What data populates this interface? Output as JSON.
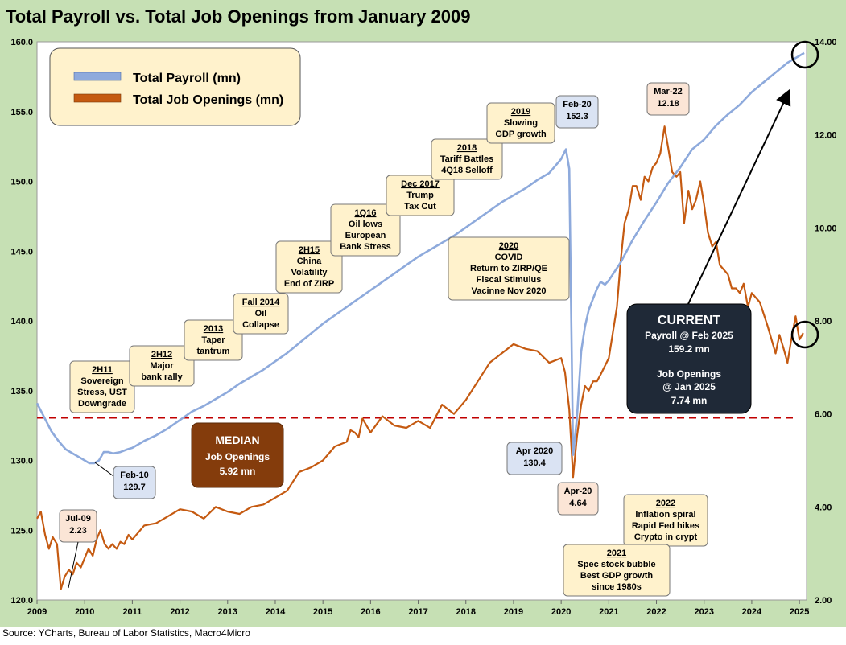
{
  "title": "Total Payroll vs. Total Job Openings from January 2009",
  "source": "Source: YCharts, Bureau of Labor Statistics, Macro4Micro",
  "colors": {
    "background": "#c6e0b4",
    "payroll": "#8eaadc",
    "openings": "#c55a11",
    "median": "#c00000",
    "callout_fill": "#fff2cc",
    "callout_blue": "#dae3f3",
    "callout_pink": "#fbe5d6",
    "dark_box": "#1f2937",
    "median_box": "#843c0c"
  },
  "chart_data": {
    "type": "line",
    "title": "Total Payroll vs. Total Job Openings from January 2009",
    "x_ticks": [
      "2009",
      "2010",
      "2011",
      "2012",
      "2013",
      "2014",
      "2015",
      "2016",
      "2017",
      "2018",
      "2019",
      "2020",
      "2021",
      "2022",
      "2023",
      "2024",
      "2025"
    ],
    "y_left_ticks": [
      "120.0",
      "125.0",
      "130.0",
      "135.0",
      "140.0",
      "145.0",
      "150.0",
      "155.0",
      "160.0"
    ],
    "y_right_ticks": [
      "2.00",
      "4.00",
      "6.00",
      "8.00",
      "10.00",
      "12.00",
      "14.00"
    ],
    "y_left_range": [
      120,
      160
    ],
    "y_right_range": [
      2,
      14
    ],
    "x_range": [
      2009,
      2025.15
    ],
    "legend": {
      "position": "top-left",
      "items": [
        "Total Payroll (mn)",
        "Total Job Openings (mn)"
      ]
    },
    "series": [
      {
        "name": "Total Payroll (mn)",
        "axis": "left",
        "points": [
          [
            2009.0,
            134.1
          ],
          [
            2009.15,
            133.1
          ],
          [
            2009.3,
            132.1
          ],
          [
            2009.45,
            131.4
          ],
          [
            2009.6,
            130.8
          ],
          [
            2009.75,
            130.5
          ],
          [
            2009.9,
            130.2
          ],
          [
            2010.0,
            130.0
          ],
          [
            2010.1,
            129.8
          ],
          [
            2010.2,
            129.8
          ],
          [
            2010.3,
            130.0
          ],
          [
            2010.4,
            130.6
          ],
          [
            2010.5,
            130.6
          ],
          [
            2010.6,
            130.5
          ],
          [
            2010.75,
            130.6
          ],
          [
            2010.9,
            130.8
          ],
          [
            2011.0,
            130.9
          ],
          [
            2011.25,
            131.4
          ],
          [
            2011.5,
            131.8
          ],
          [
            2011.75,
            132.3
          ],
          [
            2012.0,
            132.9
          ],
          [
            2012.25,
            133.5
          ],
          [
            2012.5,
            133.9
          ],
          [
            2012.75,
            134.4
          ],
          [
            2013.0,
            134.9
          ],
          [
            2013.25,
            135.5
          ],
          [
            2013.5,
            136.0
          ],
          [
            2013.75,
            136.5
          ],
          [
            2014.0,
            137.1
          ],
          [
            2014.25,
            137.7
          ],
          [
            2014.5,
            138.4
          ],
          [
            2014.75,
            139.1
          ],
          [
            2015.0,
            139.8
          ],
          [
            2015.25,
            140.4
          ],
          [
            2015.5,
            141.0
          ],
          [
            2015.75,
            141.6
          ],
          [
            2016.0,
            142.2
          ],
          [
            2016.25,
            142.8
          ],
          [
            2016.5,
            143.4
          ],
          [
            2016.75,
            144.0
          ],
          [
            2017.0,
            144.6
          ],
          [
            2017.25,
            145.1
          ],
          [
            2017.5,
            145.6
          ],
          [
            2017.75,
            146.1
          ],
          [
            2018.0,
            146.7
          ],
          [
            2018.25,
            147.3
          ],
          [
            2018.5,
            147.9
          ],
          [
            2018.75,
            148.5
          ],
          [
            2019.0,
            149.0
          ],
          [
            2019.25,
            149.5
          ],
          [
            2019.5,
            150.1
          ],
          [
            2019.75,
            150.6
          ],
          [
            2020.0,
            151.6
          ],
          [
            2020.1,
            152.3
          ],
          [
            2020.17,
            150.9
          ],
          [
            2020.25,
            130.4
          ],
          [
            2020.33,
            133.0
          ],
          [
            2020.42,
            137.8
          ],
          [
            2020.5,
            139.6
          ],
          [
            2020.58,
            140.8
          ],
          [
            2020.67,
            141.6
          ],
          [
            2020.75,
            142.3
          ],
          [
            2020.83,
            142.8
          ],
          [
            2020.92,
            142.6
          ],
          [
            2021.0,
            142.9
          ],
          [
            2021.25,
            144.2
          ],
          [
            2021.5,
            145.8
          ],
          [
            2021.75,
            147.2
          ],
          [
            2022.0,
            148.5
          ],
          [
            2022.25,
            149.9
          ],
          [
            2022.5,
            151.0
          ],
          [
            2022.75,
            152.3
          ],
          [
            2023.0,
            153.0
          ],
          [
            2023.25,
            154.0
          ],
          [
            2023.5,
            154.8
          ],
          [
            2023.75,
            155.5
          ],
          [
            2024.0,
            156.4
          ],
          [
            2024.25,
            157.1
          ],
          [
            2024.5,
            157.8
          ],
          [
            2024.75,
            158.5
          ],
          [
            2025.0,
            159.0
          ],
          [
            2025.1,
            159.2
          ]
        ]
      },
      {
        "name": "Total Job Openings (mn)",
        "axis": "right",
        "points": [
          [
            2009.0,
            3.75
          ],
          [
            2009.08,
            3.9
          ],
          [
            2009.17,
            3.4
          ],
          [
            2009.25,
            3.1
          ],
          [
            2009.33,
            3.35
          ],
          [
            2009.42,
            3.2
          ],
          [
            2009.5,
            2.23
          ],
          [
            2009.58,
            2.5
          ],
          [
            2009.67,
            2.65
          ],
          [
            2009.75,
            2.55
          ],
          [
            2009.83,
            2.8
          ],
          [
            2009.92,
            2.7
          ],
          [
            2010.0,
            2.9
          ],
          [
            2010.08,
            3.1
          ],
          [
            2010.17,
            2.95
          ],
          [
            2010.25,
            3.3
          ],
          [
            2010.33,
            3.5
          ],
          [
            2010.42,
            3.2
          ],
          [
            2010.5,
            3.1
          ],
          [
            2010.58,
            3.2
          ],
          [
            2010.67,
            3.1
          ],
          [
            2010.75,
            3.25
          ],
          [
            2010.83,
            3.2
          ],
          [
            2010.92,
            3.4
          ],
          [
            2011.0,
            3.3
          ],
          [
            2011.25,
            3.6
          ],
          [
            2011.5,
            3.65
          ],
          [
            2011.75,
            3.8
          ],
          [
            2012.0,
            3.95
          ],
          [
            2012.25,
            3.9
          ],
          [
            2012.5,
            3.75
          ],
          [
            2012.75,
            4.0
          ],
          [
            2013.0,
            3.9
          ],
          [
            2013.25,
            3.85
          ],
          [
            2013.5,
            4.0
          ],
          [
            2013.75,
            4.05
          ],
          [
            2014.0,
            4.2
          ],
          [
            2014.25,
            4.35
          ],
          [
            2014.5,
            4.75
          ],
          [
            2014.75,
            4.85
          ],
          [
            2015.0,
            5.0
          ],
          [
            2015.25,
            5.3
          ],
          [
            2015.5,
            5.4
          ],
          [
            2015.58,
            5.65
          ],
          [
            2015.67,
            5.6
          ],
          [
            2015.75,
            5.5
          ],
          [
            2015.83,
            5.9
          ],
          [
            2016.0,
            5.6
          ],
          [
            2016.25,
            5.95
          ],
          [
            2016.5,
            5.75
          ],
          [
            2016.75,
            5.7
          ],
          [
            2017.0,
            5.85
          ],
          [
            2017.25,
            5.7
          ],
          [
            2017.5,
            6.2
          ],
          [
            2017.75,
            6.0
          ],
          [
            2018.0,
            6.3
          ],
          [
            2018.25,
            6.7
          ],
          [
            2018.5,
            7.1
          ],
          [
            2018.75,
            7.3
          ],
          [
            2019.0,
            7.5
          ],
          [
            2019.25,
            7.4
          ],
          [
            2019.5,
            7.35
          ],
          [
            2019.75,
            7.1
          ],
          [
            2020.0,
            7.2
          ],
          [
            2020.08,
            6.9
          ],
          [
            2020.17,
            6.1
          ],
          [
            2020.25,
            4.64
          ],
          [
            2020.33,
            5.5
          ],
          [
            2020.42,
            6.2
          ],
          [
            2020.5,
            6.6
          ],
          [
            2020.58,
            6.5
          ],
          [
            2020.67,
            6.7
          ],
          [
            2020.75,
            6.7
          ],
          [
            2020.83,
            6.85
          ],
          [
            2021.0,
            7.2
          ],
          [
            2021.17,
            8.3
          ],
          [
            2021.25,
            9.3
          ],
          [
            2021.33,
            10.1
          ],
          [
            2021.42,
            10.4
          ],
          [
            2021.5,
            10.9
          ],
          [
            2021.58,
            10.9
          ],
          [
            2021.67,
            10.6
          ],
          [
            2021.75,
            11.1
          ],
          [
            2021.83,
            11.0
          ],
          [
            2021.92,
            11.3
          ],
          [
            2022.0,
            11.4
          ],
          [
            2022.08,
            11.6
          ],
          [
            2022.17,
            12.18
          ],
          [
            2022.25,
            11.7
          ],
          [
            2022.33,
            11.2
          ],
          [
            2022.42,
            11.1
          ],
          [
            2022.5,
            11.2
          ],
          [
            2022.58,
            10.1
          ],
          [
            2022.67,
            10.8
          ],
          [
            2022.75,
            10.4
          ],
          [
            2022.83,
            10.6
          ],
          [
            2022.92,
            11.0
          ],
          [
            2023.0,
            10.5
          ],
          [
            2023.08,
            9.9
          ],
          [
            2023.17,
            9.6
          ],
          [
            2023.25,
            9.7
          ],
          [
            2023.33,
            9.2
          ],
          [
            2023.5,
            9.0
          ],
          [
            2023.58,
            8.7
          ],
          [
            2023.67,
            8.7
          ],
          [
            2023.75,
            8.6
          ],
          [
            2023.83,
            8.8
          ],
          [
            2023.92,
            8.3
          ],
          [
            2024.0,
            8.6
          ],
          [
            2024.17,
            8.4
          ],
          [
            2024.33,
            7.9
          ],
          [
            2024.5,
            7.3
          ],
          [
            2024.58,
            7.7
          ],
          [
            2024.67,
            7.4
          ],
          [
            2024.75,
            7.1
          ],
          [
            2024.83,
            7.6
          ],
          [
            2024.92,
            8.1
          ],
          [
            2025.0,
            7.6
          ],
          [
            2025.08,
            7.74
          ]
        ]
      }
    ],
    "median_line": {
      "axis": "right",
      "value": 5.92
    },
    "annotations": {
      "payroll_low": {
        "date": "Feb-10",
        "value": "129.7"
      },
      "payroll_peak": {
        "date": "Feb-20",
        "value": "152.3"
      },
      "payroll_covid": {
        "date": "Apr 2020",
        "value": "130.4"
      },
      "openings_low": {
        "date": "Jul-09",
        "value": "2.23"
      },
      "openings_covid": {
        "date": "Apr-20",
        "value": "4.64"
      },
      "openings_peak": {
        "date": "Mar-22",
        "value": "12.18"
      }
    }
  },
  "legend_labels": {
    "payroll": "Total Payroll (mn)",
    "openings": "Total Job Openings (mn)"
  },
  "events": [
    {
      "head": "2H11",
      "lines": [
        "Sovereign",
        "Stress, UST",
        "Downgrade"
      ]
    },
    {
      "head": "2H12",
      "lines": [
        "Major",
        "bank rally"
      ]
    },
    {
      "head": "2013",
      "lines": [
        "Taper",
        "tantrum"
      ]
    },
    {
      "head": "Fall 2014",
      "lines": [
        "Oil",
        "Collapse"
      ]
    },
    {
      "head": "2H15",
      "lines": [
        "China",
        "Volatility",
        "End of ZIRP"
      ]
    },
    {
      "head": "1Q16",
      "lines": [
        "Oil lows",
        "European",
        "Bank Stress"
      ]
    },
    {
      "head": "Dec 2017",
      "lines": [
        "Trump",
        "Tax Cut"
      ]
    },
    {
      "head": "2018",
      "lines": [
        "Tariff Battles",
        "4Q18 Selloff"
      ]
    },
    {
      "head": "2019",
      "lines": [
        "Slowing",
        "GDP growth"
      ]
    },
    {
      "head": "2020",
      "lines": [
        "COVID",
        "Return to ZIRP/QE",
        "Fiscal Stimulus",
        "Vacinne Nov 2020"
      ]
    },
    {
      "head": "2022",
      "lines": [
        "Inflation spiral",
        "Rapid Fed hikes",
        "Crypto in crypt"
      ]
    },
    {
      "head": "2021",
      "lines": [
        "Spec stock bubble",
        "Best GDP growth",
        "since 1980s"
      ]
    }
  ],
  "median_box": {
    "title": "MEDIAN",
    "line1": "Job Openings",
    "line2": "5.92 mn"
  },
  "current_box": {
    "title": "CURRENT",
    "line1": "Payroll @ Feb 2025",
    "line2": "159.2 mn",
    "line3": "Job Openings",
    "line4": "@  Jan 2025",
    "line5": "7.74 mn"
  }
}
